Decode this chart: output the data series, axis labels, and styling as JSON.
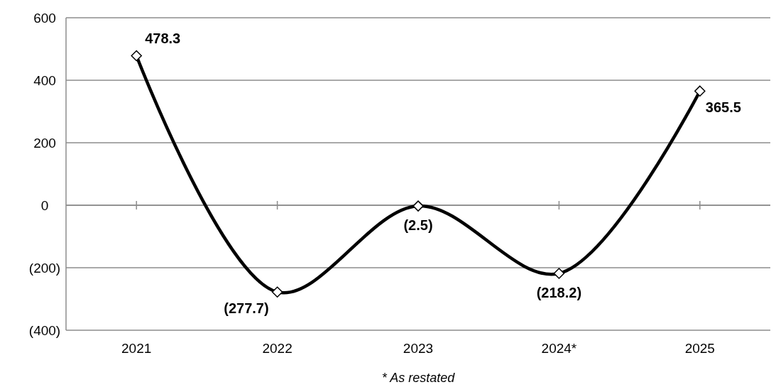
{
  "chart_data": {
    "type": "line",
    "categories": [
      "2021",
      "2022",
      "2023",
      "2024*",
      "2025"
    ],
    "series": [
      {
        "color": "#000000",
        "values": [
          478.3,
          -277.7,
          -2.5,
          -218.2,
          365.5
        ],
        "value_labels": [
          "478.3",
          "(277.7)",
          "(2.5)",
          "(218.2)",
          "365.5"
        ]
      }
    ],
    "ylim": [
      -400,
      600
    ],
    "yticks": [
      {
        "value": -400,
        "label": "(400)"
      },
      {
        "value": -200,
        "label": "(200)"
      },
      0,
      200,
      400,
      600
    ],
    "grid": "y",
    "marker": "diamond",
    "line_style": "solid",
    "annotations": [
      "* As restated"
    ]
  }
}
